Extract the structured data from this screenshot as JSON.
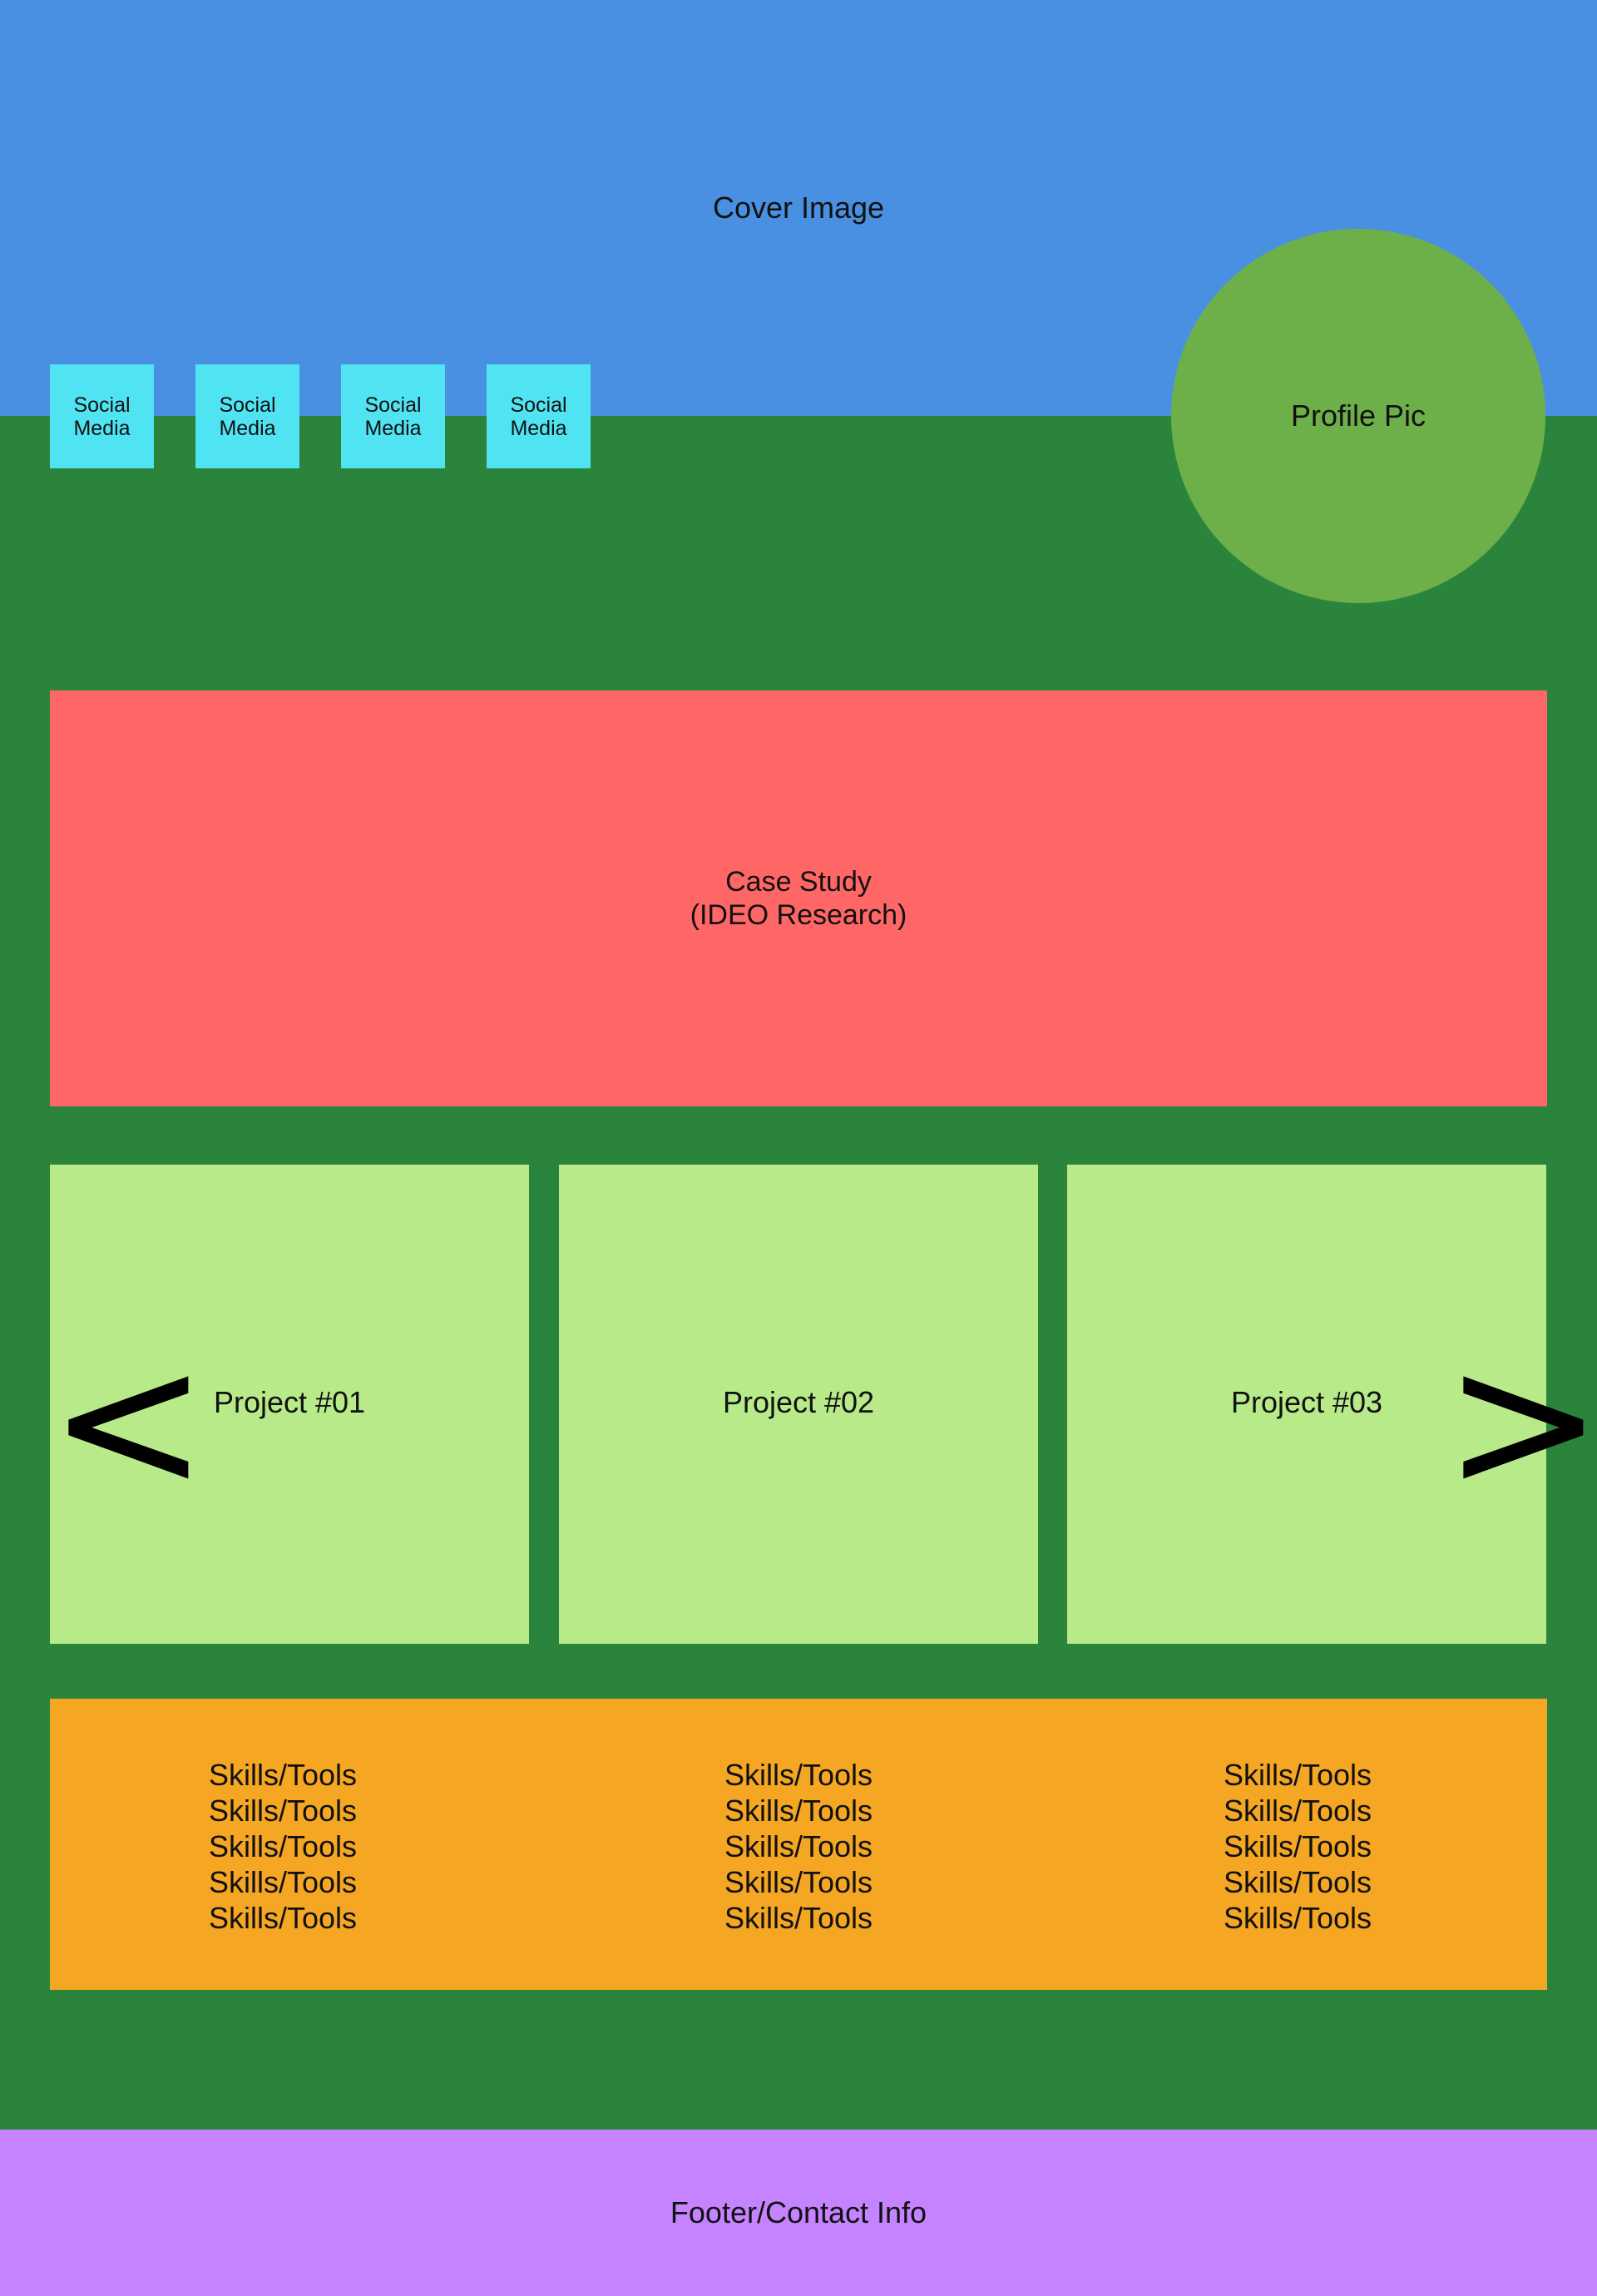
{
  "cover": {
    "label": "Cover Image"
  },
  "social_links": [
    {
      "line1": "Social",
      "line2": "Media"
    },
    {
      "line1": "Social",
      "line2": "Media"
    },
    {
      "line1": "Social",
      "line2": "Media"
    },
    {
      "line1": "Social",
      "line2": "Media"
    }
  ],
  "profile": {
    "label": "Profile Pic"
  },
  "case_study": {
    "line1": "Case Study",
    "line2": "(IDEO Research)"
  },
  "projects": {
    "prev_label": "<",
    "next_label": ">",
    "items": [
      {
        "label": "Project #01"
      },
      {
        "label": "Project #02"
      },
      {
        "label": "Project #03"
      }
    ]
  },
  "skills": {
    "columns": [
      [
        "Skills/Tools",
        "Skills/Tools",
        "Skills/Tools",
        "Skills/Tools",
        "Skills/Tools"
      ],
      [
        "Skills/Tools",
        "Skills/Tools",
        "Skills/Tools",
        "Skills/Tools",
        "Skills/Tools"
      ],
      [
        "Skills/Tools",
        "Skills/Tools",
        "Skills/Tools",
        "Skills/Tools",
        "Skills/Tools"
      ]
    ]
  },
  "footer": {
    "label": "Footer/Contact Info"
  },
  "colors": {
    "page_background": "#2b843c",
    "cover": "#4a90e2",
    "social": "#50e3f2",
    "profile": "#6db04a",
    "case_study": "#ff6666",
    "project": "#b9ea89",
    "skills": "#f5a623",
    "footer": "#c583ff"
  }
}
